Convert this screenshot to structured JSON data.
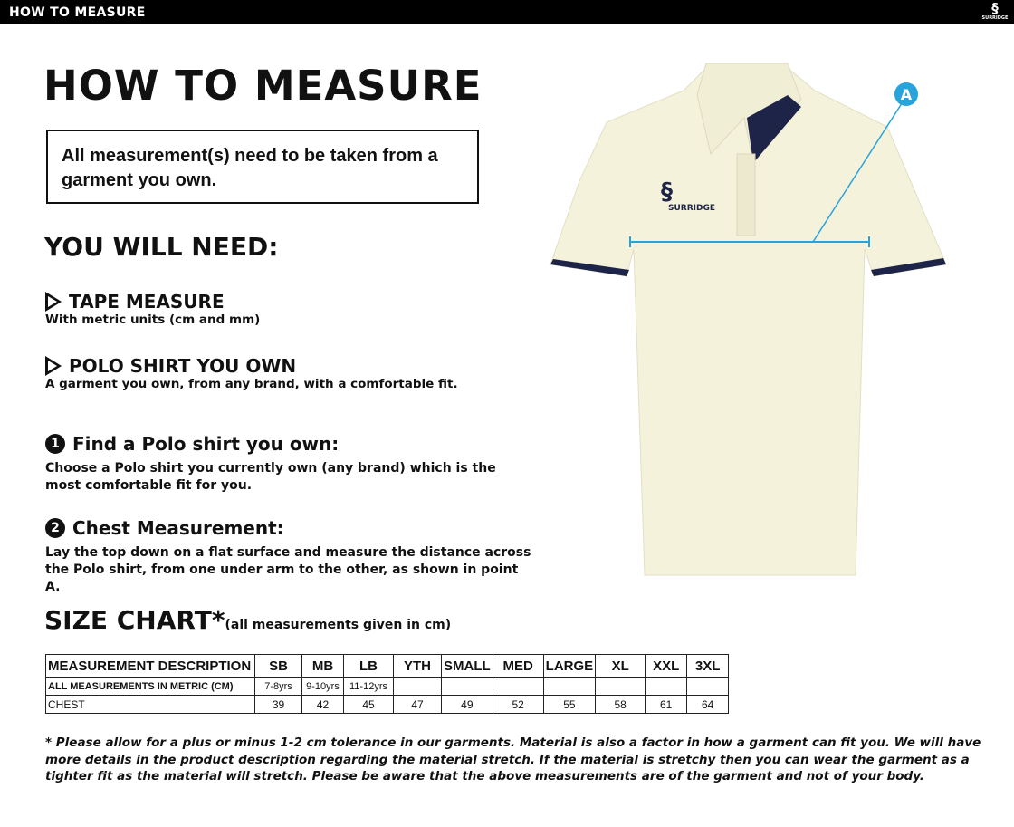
{
  "topbar": {
    "title": "HOW TO MEASURE",
    "logo_text": "SURRIDGE"
  },
  "title": "HOW TO MEASURE",
  "note": "All measurement(s) need to be taken from a garment you own.",
  "need_heading": "YOU WILL NEED:",
  "needs": [
    {
      "title": "TAPE MEASURE",
      "desc": "With metric units (cm and mm)"
    },
    {
      "title": "POLO SHIRT YOU OWN",
      "desc": "A garment you own, from any brand, with a comfortable fit."
    }
  ],
  "steps": [
    {
      "num": "1",
      "title": "Find a Polo shirt you own:",
      "desc": "Choose a Polo shirt you currently own (any brand) which is the most comfortable fit for you."
    },
    {
      "num": "2",
      "title": "Chest Measurement:",
      "desc": "Lay the top down on a flat surface and measure the distance across the Polo shirt, from one under arm to the other, as shown in point A."
    }
  ],
  "diagram": {
    "point_label": "A",
    "shirt_logo": "SURRIDGE",
    "accent": "#29a3dc"
  },
  "size_chart": {
    "title": "SIZE CHART*",
    "subtitle": "(all measurements given in cm)",
    "header": [
      "MEASUREMENT DESCRIPTION",
      "SB",
      "MB",
      "LB",
      "YTH",
      "SMALL",
      "MED",
      "LARGE",
      "XL",
      "XXL",
      "3XL"
    ],
    "rows": [
      [
        "ALL MEASUREMENTS IN METRIC (CM)",
        "7-8yrs",
        "9-10yrs",
        "11-12yrs",
        "",
        "",
        "",
        "",
        "",
        "",
        ""
      ],
      [
        "CHEST",
        "39",
        "42",
        "45",
        "47",
        "49",
        "52",
        "55",
        "58",
        "61",
        "64"
      ]
    ]
  },
  "footnote": "* Please allow for a plus or minus 1-2 cm tolerance in our garments. Material is also a factor in how a garment can fit you. We will have more details in the product description regarding the material stretch.  If the material is stretchy then you can wear the garment as a tighter fit as the material will stretch.  Please be aware that the above measurements are of the garment and not of your body."
}
